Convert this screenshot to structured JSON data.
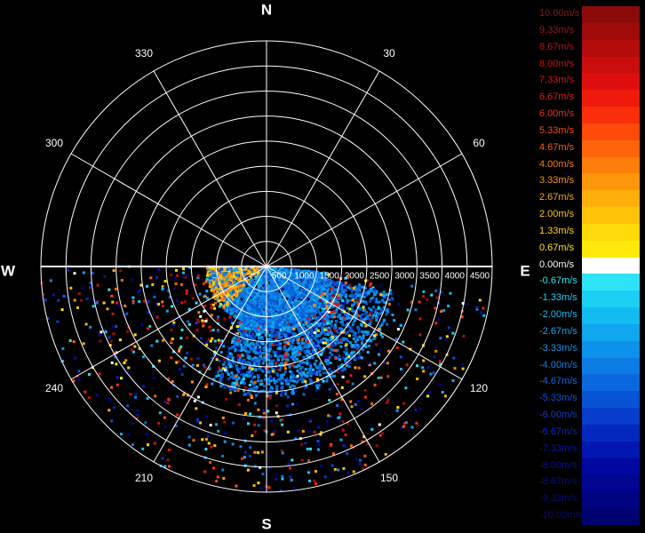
{
  "chart_data": {
    "type": "polar-radar-velocity",
    "compass": {
      "north": "N",
      "east": "E",
      "south": "S",
      "west": "W"
    },
    "bearing_labels": [
      "30",
      "60",
      "120",
      "150",
      "210",
      "240",
      "300",
      "330"
    ],
    "bearing_angles": [
      30,
      60,
      120,
      150,
      210,
      240,
      300,
      330
    ],
    "range_labels": [
      "500",
      "1000",
      "1500",
      "2000",
      "2500",
      "3000",
      "3500",
      "4000",
      "4500"
    ],
    "range_values_m": [
      500,
      1000,
      1500,
      2000,
      2500,
      3000,
      3500,
      4000,
      4500
    ],
    "max_range_m": 4500,
    "spoke_step_deg": 30,
    "data_sector_deg": [
      90,
      270
    ],
    "dense_core": {
      "bearing_deg": [
        96,
        270
      ],
      "range_m": [
        0,
        1200
      ],
      "bearing_deg_extended": [
        102,
        205
      ],
      "range_m_extended": [
        1200,
        2600
      ],
      "dominant_velocity_ms": -4.0
    },
    "legend": {
      "entries": [
        {
          "label": "10.00m/s",
          "value": 10.0,
          "color": "#8b0a0a",
          "text_color": "#8b1515"
        },
        {
          "label": "9.33m/s",
          "value": 9.33,
          "color": "#9f0b0b",
          "text_color": "#a21414"
        },
        {
          "label": "8.67m/s",
          "value": 8.67,
          "color": "#b40c0c",
          "text_color": "#b51313"
        },
        {
          "label": "8.00m/s",
          "value": 8.0,
          "color": "#c90d0d",
          "text_color": "#c41212"
        },
        {
          "label": "7.33m/s",
          "value": 7.33,
          "color": "#de0e0e",
          "text_color": "#d21414"
        },
        {
          "label": "6.67m/s",
          "value": 6.67,
          "color": "#ef1a0b",
          "text_color": "#de1b12"
        },
        {
          "label": "6.00m/s",
          "value": 6.0,
          "color": "#fa2e0a",
          "text_color": "#e8300f"
        },
        {
          "label": "5.33m/s",
          "value": 5.33,
          "color": "#ff4a0a",
          "text_color": "#f24a10"
        },
        {
          "label": "4.67m/s",
          "value": 4.67,
          "color": "#ff640a",
          "text_color": "#f7620f"
        },
        {
          "label": "4.00m/s",
          "value": 4.0,
          "color": "#ff7d0a",
          "text_color": "#f97b10"
        },
        {
          "label": "3.33m/s",
          "value": 3.33,
          "color": "#ff960a",
          "text_color": "#fb9312"
        },
        {
          "label": "2.67m/s",
          "value": 2.67,
          "color": "#ffaf0a",
          "text_color": "#fdaa13"
        },
        {
          "label": "2.00m/s",
          "value": 2.0,
          "color": "#ffc30a",
          "text_color": "#fec014"
        },
        {
          "label": "1.33m/s",
          "value": 1.33,
          "color": "#ffd80a",
          "text_color": "#ffd414"
        },
        {
          "label": "0.67m/s",
          "value": 0.67,
          "color": "#ffe80a",
          "text_color": "#ffe514"
        },
        {
          "label": "0.00m/s",
          "value": 0.0,
          "color": "#ffffff",
          "text_color": "#ffffff"
        },
        {
          "label": "-0.67m/s",
          "value": -0.67,
          "color": "#2ee3f5",
          "text_color": "#2ee3f5"
        },
        {
          "label": "-1.33m/s",
          "value": -1.33,
          "color": "#1ccff5",
          "text_color": "#1fd0f5"
        },
        {
          "label": "-2.00m/s",
          "value": -2.0,
          "color": "#12bbf2",
          "text_color": "#16bcf2"
        },
        {
          "label": "-2.67m/s",
          "value": -2.67,
          "color": "#10a6ee",
          "text_color": "#14a8ee"
        },
        {
          "label": "-3.33m/s",
          "value": -3.33,
          "color": "#0e91ea",
          "text_color": "#1293ea"
        },
        {
          "label": "-4.00m/s",
          "value": -4.0,
          "color": "#0c7ce4",
          "text_color": "#107ee4"
        },
        {
          "label": "-4.67m/s",
          "value": -4.67,
          "color": "#0a67dd",
          "text_color": "#0e69dd"
        },
        {
          "label": "-5.33m/s",
          "value": -5.33,
          "color": "#0852d4",
          "text_color": "#0c54d4"
        },
        {
          "label": "-6.00m/s",
          "value": -6.0,
          "color": "#063dca",
          "text_color": "#0a40ca"
        },
        {
          "label": "-6.67m/s",
          "value": -6.67,
          "color": "#0428be",
          "text_color": "#082cbe"
        },
        {
          "label": "-7.33m/s",
          "value": -7.33,
          "color": "#0216b0",
          "text_color": "#061aa8"
        },
        {
          "label": "-8.00m/s",
          "value": -8.0,
          "color": "#0008a0",
          "text_color": "#0a0e98"
        },
        {
          "label": "-8.67m/s",
          "value": -8.67,
          "color": "#000690",
          "text_color": "#0a0c88"
        },
        {
          "label": "-9.33m/s",
          "value": -9.33,
          "color": "#000480",
          "text_color": "#0a0a78"
        },
        {
          "label": "-10.00m/s",
          "value": -10.0,
          "color": "#000270",
          "text_color": "#0a0a6a"
        }
      ]
    },
    "colors": {
      "background": "#000000",
      "grid": "#ffffff"
    }
  }
}
